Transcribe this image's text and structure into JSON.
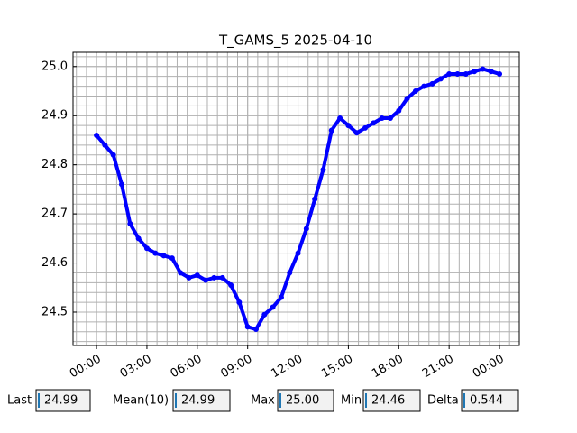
{
  "chart_data": {
    "type": "line",
    "title": "T_GAMS_5 2025-04-10",
    "x": [
      0,
      0.5,
      1,
      1.5,
      2,
      2.5,
      3,
      3.5,
      4,
      4.5,
      5,
      5.5,
      6,
      6.5,
      7,
      7.5,
      8,
      8.5,
      9,
      9.5,
      10,
      10.5,
      11,
      11.5,
      12,
      12.5,
      13,
      13.5,
      14,
      14.5,
      15,
      15.5,
      16,
      16.5,
      17,
      17.5,
      18,
      18.5,
      19,
      19.5,
      20,
      20.5,
      21,
      21.5,
      22,
      22.5,
      23,
      23.5,
      24
    ],
    "values": [
      24.86,
      24.84,
      24.82,
      24.76,
      24.68,
      24.65,
      24.63,
      24.62,
      24.615,
      24.61,
      24.58,
      24.57,
      24.575,
      24.565,
      24.57,
      24.57,
      24.555,
      24.52,
      24.47,
      24.465,
      24.495,
      24.51,
      24.53,
      24.58,
      24.62,
      24.67,
      24.73,
      24.79,
      24.87,
      24.895,
      24.88,
      24.865,
      24.875,
      24.885,
      24.895,
      24.895,
      24.91,
      24.935,
      24.95,
      24.96,
      24.965,
      24.975,
      24.985,
      24.985,
      24.985,
      24.99,
      24.995,
      24.99,
      24.985
    ],
    "color": "#0000ff",
    "marker": "o",
    "xlim": [
      -1.4,
      25.18
    ],
    "xticks": [
      {
        "value": 0,
        "label": "00:00"
      },
      {
        "value": 3,
        "label": "03:00"
      },
      {
        "value": 6,
        "label": "06:00"
      },
      {
        "value": 9,
        "label": "09:00"
      },
      {
        "value": 12,
        "label": "12:00"
      },
      {
        "value": 15,
        "label": "15:00"
      },
      {
        "value": 18,
        "label": "18:00"
      },
      {
        "value": 21,
        "label": "21:00"
      },
      {
        "value": 24,
        "label": "00:00"
      }
    ],
    "ylim": [
      24.432,
      25.029
    ],
    "yticks": [
      24.5,
      24.6,
      24.7,
      24.8,
      24.9,
      {
        "value": 25,
        "label": "25.0"
      }
    ],
    "grid": true,
    "minor_divisions": 5
  },
  "stats": [
    {
      "label": "Last",
      "value": "24.99"
    },
    {
      "label": "Mean(10)",
      "value": "24.99"
    },
    {
      "label": "Max",
      "value": "25.00"
    },
    {
      "label": "Min",
      "value": "24.46"
    },
    {
      "label": "Delta",
      "value": "0.544"
    }
  ]
}
